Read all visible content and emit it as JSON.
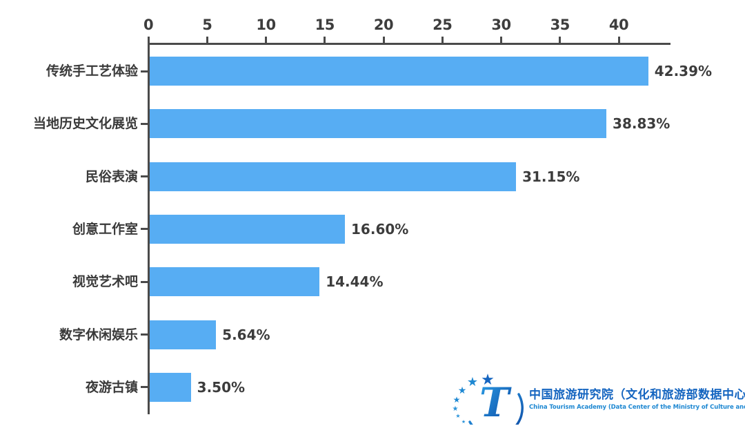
{
  "chart_data": {
    "type": "bar",
    "orientation": "horizontal",
    "title": "",
    "xlabel": "",
    "ylabel": "",
    "categories": [
      "传统手工艺体验",
      "当地历史文化展览",
      "民俗表演",
      "创意工作室",
      "视觉艺术吧",
      "数字休闲娱乐",
      "夜游古镇"
    ],
    "values": [
      42.39,
      38.83,
      31.15,
      16.6,
      14.44,
      5.64,
      3.5
    ],
    "value_labels": [
      "42.39%",
      "38.83%",
      "31.15%",
      "16.60%",
      "14.44%",
      "5.64%",
      "3.50%"
    ],
    "x_ticks": [
      0,
      5,
      10,
      15,
      20,
      25,
      30,
      35,
      40
    ],
    "xlim": [
      0,
      44.4
    ],
    "grid": false,
    "tick_position": "top",
    "legend": "none",
    "bar_color": "#57adf3",
    "axis_color": "#4a4a4a",
    "label_color": "#3a3a3a"
  },
  "watermark": {
    "logo_letter": "T",
    "cn_text": "中国旅游研究院（文化和旅游部数据中心）",
    "en_text": "China Tourism Academy (Data Center of the Ministry of Culture and Tourism)",
    "brand_color": "#1565c0"
  }
}
